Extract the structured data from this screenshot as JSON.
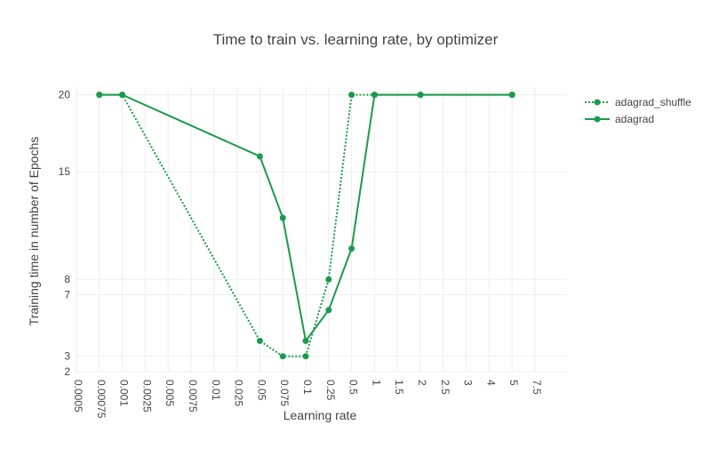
{
  "chart_data": {
    "type": "line",
    "title": "Time to train vs. learning rate, by optimizer",
    "xlabel": "Learning rate",
    "ylabel": "Training time in number of Epochs",
    "x_axis_type": "category",
    "categories": [
      "0.0005",
      "0.00075",
      "0.001",
      "0.0025",
      "0.005",
      "0.0075",
      "0.01",
      "0.025",
      "0.05",
      "0.075",
      "0.1",
      "0.25",
      "0.5",
      "1",
      "1.5",
      "2",
      "2.5",
      "3",
      "4",
      "5",
      "7.5"
    ],
    "y_tick_labels": [
      "2",
      "3",
      "7",
      "8",
      "15",
      "20"
    ],
    "ylim": [
      2,
      20.5
    ],
    "legend_position": "top-right",
    "grid": true,
    "series": [
      {
        "name": "adagrad_shuffle",
        "line_style": "dotted",
        "color": "#1a9b4b",
        "x": [
          "0.00075",
          "0.001",
          "0.05",
          "0.075",
          "0.1",
          "0.25",
          "0.5",
          "1",
          "2",
          "5"
        ],
        "y": [
          20,
          20,
          4,
          3,
          3,
          8,
          20,
          20,
          20,
          20
        ]
      },
      {
        "name": "adagrad",
        "line_style": "solid",
        "color": "#1a9b4b",
        "x": [
          "0.00075",
          "0.001",
          "0.05",
          "0.075",
          "0.1",
          "0.25",
          "0.5",
          "1",
          "2",
          "5"
        ],
        "y": [
          20,
          20,
          16,
          12,
          4,
          6,
          10,
          20,
          20,
          20
        ]
      }
    ]
  }
}
